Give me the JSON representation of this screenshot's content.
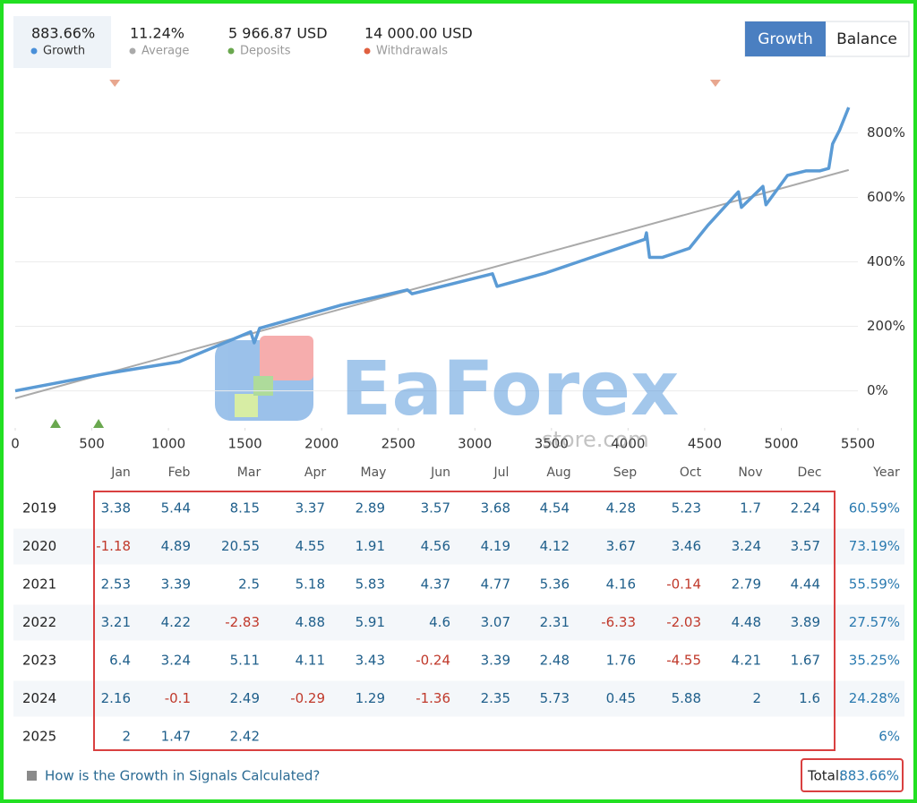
{
  "header": {
    "stats": [
      {
        "value": "883.66%",
        "label": "Growth",
        "color": "#4a90d9"
      },
      {
        "value": "11.24%",
        "label": "Average",
        "color": "#aaaaaa"
      },
      {
        "value": "5 966.87 USD",
        "label": "Deposits",
        "color": "#6aa84f"
      },
      {
        "value": "14 000.00 USD",
        "label": "Withdrawals",
        "color": "#e06040"
      }
    ],
    "tabs": [
      "Growth",
      "Balance"
    ]
  },
  "chart_data": {
    "type": "line",
    "series": [
      {
        "name": "Growth",
        "color": "#5b9bd5",
        "x": [
          0,
          600,
          1070,
          1537,
          1560,
          1595,
          2120,
          2560,
          2590,
          3115,
          3145,
          3465,
          4110,
          4120,
          4140,
          4225,
          4400,
          4520,
          4720,
          4740,
          4880,
          4900,
          5040,
          5160,
          5250,
          5310,
          5335,
          5380,
          5440
        ],
        "values": [
          0,
          54,
          90,
          183,
          149,
          194,
          265,
          313,
          301,
          363,
          324,
          366,
          470,
          490,
          414,
          414,
          442,
          513,
          617,
          569,
          634,
          577,
          668,
          682,
          682,
          690,
          766,
          808,
          879
        ]
      },
      {
        "name": "Average",
        "color": "#aaaaaa",
        "x": [
          0,
          5440
        ],
        "values": [
          -23,
          685
        ]
      }
    ],
    "deposits": {
      "color": "#6aa84f",
      "x": [
        263,
        544
      ]
    },
    "withdrawals": {
      "color": "#e8a78f",
      "x": [
        650,
        4570
      ]
    },
    "xlim": [
      0,
      5500
    ],
    "xticks": [
      0,
      500,
      1000,
      1500,
      2000,
      2500,
      3000,
      3500,
      4000,
      4500,
      5000,
      5500
    ],
    "ylim": [
      -115,
      990
    ],
    "yticks": [
      {
        "value": 0,
        "label": "0%"
      },
      {
        "value": 200,
        "label": "200%"
      },
      {
        "value": 400,
        "label": "400%"
      },
      {
        "value": 600,
        "label": "600%"
      },
      {
        "value": 800,
        "label": "800%"
      }
    ],
    "grid": true
  },
  "table": {
    "columns": [
      "Jan",
      "Feb",
      "Mar",
      "Apr",
      "May",
      "Jun",
      "Jul",
      "Aug",
      "Sep",
      "Oct",
      "Nov",
      "Dec",
      "Year"
    ],
    "rows": [
      {
        "year": "2019",
        "months": [
          "3.38",
          "5.44",
          "8.15",
          "3.37",
          "2.89",
          "3.57",
          "3.68",
          "4.54",
          "4.28",
          "5.23",
          "1.7",
          "2.24"
        ],
        "total": "60.59%"
      },
      {
        "year": "2020",
        "months": [
          "-1.18",
          "4.89",
          "20.55",
          "4.55",
          "1.91",
          "4.56",
          "4.19",
          "4.12",
          "3.67",
          "3.46",
          "3.24",
          "3.57"
        ],
        "total": "73.19%"
      },
      {
        "year": "2021",
        "months": [
          "2.53",
          "3.39",
          "2.5",
          "5.18",
          "5.83",
          "4.37",
          "4.77",
          "5.36",
          "4.16",
          "-0.14",
          "2.79",
          "4.44"
        ],
        "total": "55.59%"
      },
      {
        "year": "2022",
        "months": [
          "3.21",
          "4.22",
          "-2.83",
          "4.88",
          "5.91",
          "4.6",
          "3.07",
          "2.31",
          "-6.33",
          "-2.03",
          "4.48",
          "3.89"
        ],
        "total": "27.57%"
      },
      {
        "year": "2023",
        "months": [
          "6.4",
          "3.24",
          "5.11",
          "4.11",
          "3.43",
          "-0.24",
          "3.39",
          "2.48",
          "1.76",
          "-4.55",
          "4.21",
          "1.67"
        ],
        "total": "35.25%"
      },
      {
        "year": "2024",
        "months": [
          "2.16",
          "-0.1",
          "2.49",
          "-0.29",
          "1.29",
          "-1.36",
          "2.35",
          "5.73",
          "0.45",
          "5.88",
          "2",
          "1.6"
        ],
        "total": "24.28%"
      },
      {
        "year": "2025",
        "months": [
          "2",
          "1.47",
          "2.42"
        ],
        "total": "6%"
      }
    ]
  },
  "footer": {
    "link": "How is the Growth in Signals Calculated?",
    "total_label": "Total:",
    "total": "883.66%"
  },
  "watermark": [
    "EaForex",
    "store.com"
  ]
}
